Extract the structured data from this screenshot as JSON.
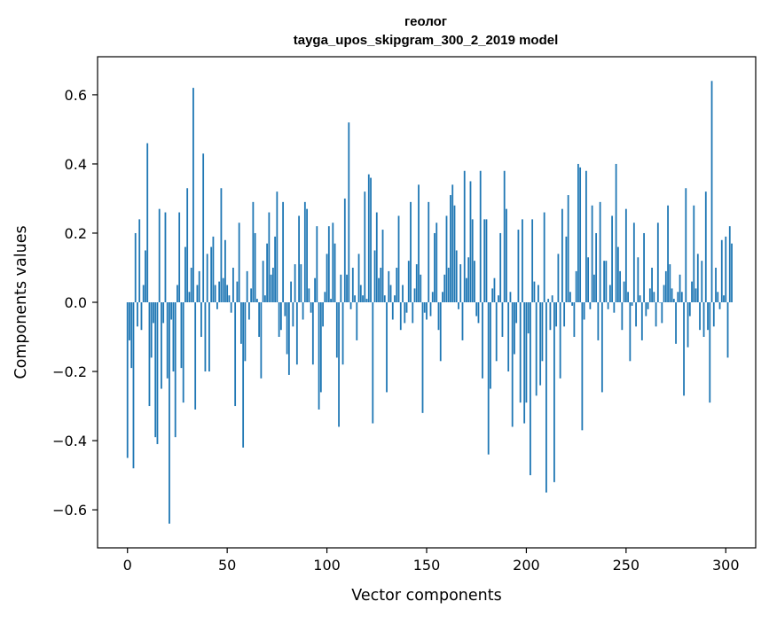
{
  "chart_data": {
    "type": "bar",
    "title": "геолог",
    "subtitle": "tayga_upos_skipgram_300_2_2019 model",
    "xlabel": "Vector components",
    "ylabel": "Components values",
    "xlim": [
      -15,
      315
    ],
    "ylim": [
      -0.71,
      0.71
    ],
    "xticks": [
      0,
      50,
      100,
      150,
      200,
      250,
      300
    ],
    "yticks": [
      -0.6,
      -0.4,
      -0.2,
      0.0,
      0.2,
      0.4,
      0.6
    ],
    "ytick_labels": [
      "−0.6",
      "−0.4",
      "−0.2",
      "0.0",
      "0.2",
      "0.4",
      "0.6"
    ],
    "bar_color": "#1f77b4",
    "grid": false,
    "x_start": 0,
    "values": [
      -0.45,
      -0.11,
      -0.19,
      -0.48,
      0.2,
      -0.07,
      0.24,
      -0.08,
      0.05,
      0.15,
      0.46,
      -0.3,
      -0.16,
      -0.06,
      -0.39,
      -0.41,
      0.27,
      -0.25,
      -0.06,
      0.26,
      -0.22,
      -0.64,
      -0.05,
      -0.2,
      -0.39,
      0.05,
      0.26,
      -0.19,
      -0.29,
      0.16,
      0.33,
      0.03,
      0.1,
      0.62,
      -0.31,
      0.05,
      0.09,
      -0.1,
      0.43,
      -0.2,
      0.14,
      -0.2,
      0.16,
      0.19,
      0.05,
      -0.02,
      0.06,
      0.33,
      0.07,
      0.18,
      0.05,
      0.02,
      -0.03,
      0.1,
      -0.3,
      0.06,
      0.23,
      -0.12,
      -0.42,
      -0.17,
      0.09,
      -0.05,
      0.04,
      0.29,
      0.2,
      0.01,
      -0.1,
      -0.22,
      0.12,
      0.02,
      0.17,
      0.26,
      0.08,
      0.1,
      0.19,
      0.32,
      -0.1,
      -0.08,
      0.29,
      -0.04,
      -0.15,
      -0.21,
      0.06,
      -0.07,
      0.11,
      -0.18,
      0.25,
      0.11,
      -0.05,
      0.29,
      0.27,
      0.04,
      -0.03,
      -0.18,
      0.07,
      0.22,
      -0.31,
      -0.26,
      -0.07,
      0.03,
      0.14,
      0.22,
      0.01,
      0.23,
      0.17,
      -0.16,
      -0.36,
      0.08,
      -0.18,
      0.3,
      0.08,
      0.52,
      -0.02,
      0.1,
      0.02,
      -0.11,
      0.14,
      0.05,
      0.02,
      0.32,
      0.01,
      0.37,
      0.36,
      -0.35,
      0.15,
      0.26,
      0.07,
      0.1,
      0.21,
      0.02,
      -0.26,
      0.09,
      0.05,
      -0.05,
      0.02,
      0.1,
      0.25,
      -0.08,
      0.05,
      -0.06,
      -0.03,
      0.12,
      0.29,
      -0.06,
      0.04,
      0.11,
      0.34,
      0.08,
      -0.32,
      -0.03,
      -0.05,
      0.29,
      -0.04,
      0.03,
      0.2,
      0.23,
      -0.08,
      -0.17,
      0.03,
      0.08,
      0.25,
      0.1,
      0.31,
      0.34,
      0.28,
      0.15,
      -0.02,
      0.11,
      -0.11,
      0.38,
      0.07,
      0.13,
      0.35,
      0.24,
      0.12,
      -0.04,
      -0.06,
      0.38,
      -0.22,
      0.24,
      0.24,
      -0.44,
      -0.25,
      0.04,
      0.07,
      -0.17,
      0.02,
      0.2,
      -0.1,
      0.38,
      0.27,
      -0.2,
      0.03,
      -0.36,
      -0.15,
      -0.06,
      0.21,
      -0.29,
      0.24,
      -0.35,
      -0.29,
      -0.09,
      -0.5,
      0.24,
      0.06,
      -0.27,
      0.05,
      -0.24,
      -0.17,
      0.26,
      -0.55,
      0.01,
      -0.08,
      0.02,
      -0.52,
      -0.07,
      0.14,
      -0.22,
      0.27,
      -0.07,
      0.19,
      0.31,
      0.03,
      -0.01,
      -0.1,
      0.09,
      0.4,
      0.39,
      -0.37,
      -0.05,
      0.38,
      0.13,
      -0.02,
      0.28,
      0.08,
      0.2,
      -0.11,
      0.29,
      -0.26,
      0.12,
      0.12,
      -0.02,
      0.05,
      0.25,
      -0.03,
      0.4,
      0.16,
      0.09,
      -0.08,
      0.06,
      0.27,
      0.03,
      -0.17,
      -0.01,
      0.23,
      -0.07,
      0.13,
      0.02,
      -0.11,
      0.2,
      -0.04,
      -0.02,
      0.04,
      0.1,
      0.03,
      -0.07,
      0.23,
      0.0,
      -0.06,
      0.05,
      0.09,
      0.28,
      0.11,
      0.04,
      0.01,
      -0.12,
      0.03,
      0.08,
      0.03,
      -0.27,
      0.33,
      -0.13,
      -0.04,
      0.06,
      0.28,
      0.04,
      0.14,
      -0.08,
      0.12,
      -0.1,
      0.32,
      -0.08,
      -0.29,
      0.64,
      -0.07,
      0.1,
      0.03,
      -0.02,
      0.18,
      0.02,
      0.19,
      -0.16,
      0.22,
      0.17
    ]
  }
}
